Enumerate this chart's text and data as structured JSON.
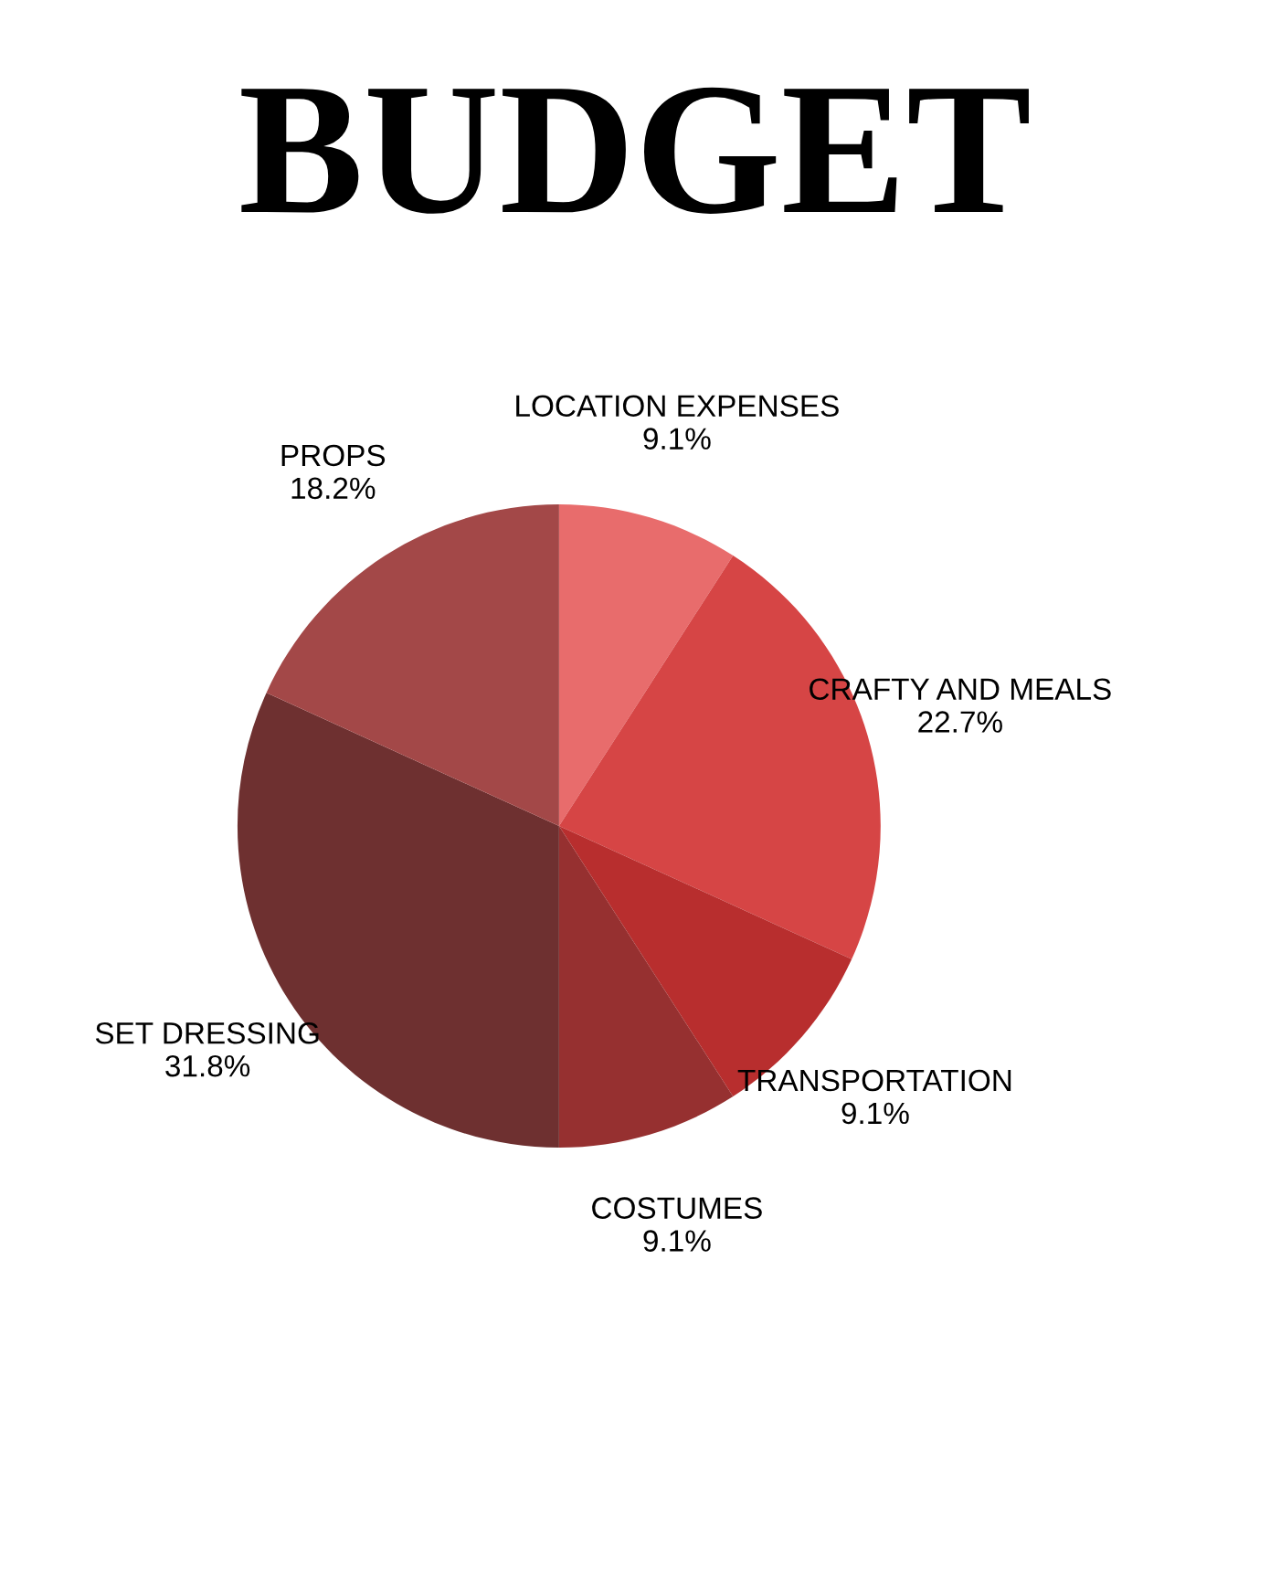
{
  "chart_data": {
    "type": "pie",
    "title": "BUDGET",
    "categories": [
      "LOCATION EXPENSES",
      "CRAFTY AND MEALS",
      "TRANSPORTATION",
      "COSTUMES",
      "SET DRESSING",
      "PROPS"
    ],
    "values": [
      9.1,
      22.7,
      9.1,
      9.1,
      31.8,
      18.2
    ],
    "value_labels": [
      "9.1%",
      "22.7%",
      "9.1%",
      "9.1%",
      "31.8%",
      "18.2%"
    ],
    "colors": [
      "#e86c6c",
      "#d64545",
      "#b82e2e",
      "#963030",
      "#6e3030",
      "#a34848"
    ]
  }
}
